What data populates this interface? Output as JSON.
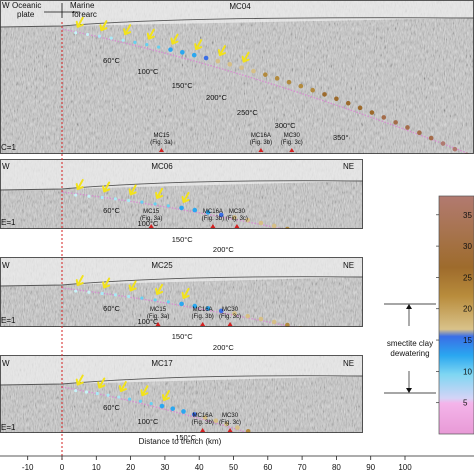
{
  "top_labels": {
    "oceanic": "Oceanic",
    "plate": "plate",
    "marine": "Marine",
    "forearc": "forearc"
  },
  "panels": [
    {
      "profile": "MC04",
      "sw": "W",
      "ne": "",
      "ve": "C=1",
      "temps": [
        "60°C",
        "100°C",
        "150°C",
        "200°C",
        "250°C",
        "300°C",
        "350°"
      ],
      "markers": [
        {
          "name": "MC15",
          "fig": "(Fig. 3a)",
          "km": 29
        },
        {
          "name": "MC16A",
          "fig": "(Fig. 3b)",
          "km": 58
        },
        {
          "name": "MC30",
          "fig": "(Fig. 3c)",
          "km": 67
        }
      ]
    },
    {
      "profile": "MC06",
      "sw": "W",
      "ne": "NE",
      "ve": "E=1",
      "temps": [
        "60°C",
        "100°C",
        "150°C",
        "200°C"
      ],
      "markers": [
        {
          "name": "MC15",
          "fig": "(Fig. 3a)",
          "km": 26
        },
        {
          "name": "MC16A",
          "fig": "(Fig. 3b)",
          "km": 44
        },
        {
          "name": "MC30",
          "fig": "(Fig. 3c)",
          "km": 51
        }
      ]
    },
    {
      "profile": "MC25",
      "sw": "W",
      "ne": "NE",
      "ve": "E=1",
      "temps": [
        "60°C",
        "100°C",
        "150°C",
        "200°C"
      ],
      "markers": [
        {
          "name": "MC15",
          "fig": "(Fig. 3a)",
          "km": 28
        },
        {
          "name": "MC16A",
          "fig": "(Fig. 3b)",
          "km": 41
        },
        {
          "name": "MC30",
          "fig": "(Fig. 3c)",
          "km": 49
        }
      ]
    },
    {
      "profile": "MC17",
      "sw": "W",
      "ne": "NE",
      "ve": "E=1",
      "temps": [
        "60°C",
        "100°C",
        "150°C"
      ],
      "markers": [
        {
          "name": "MC16A",
          "fig": "(Fig. 3b)",
          "km": 41
        },
        {
          "name": "MC30",
          "fig": "(Fig. 3c)",
          "km": 49
        }
      ]
    }
  ],
  "x_axis": {
    "label": "Distance to trench (km)",
    "ticks": [
      "-10",
      "0",
      "10",
      "20",
      "30",
      "40",
      "50",
      "60",
      "70",
      "80",
      "90",
      "100"
    ],
    "range": [
      -18,
      104
    ]
  },
  "colorbar": {
    "tick_labels": [
      "35",
      "30",
      "25",
      "20",
      "15",
      "10",
      "5"
    ],
    "annotation_line1": "smectite clay",
    "annotation_line2": "dewatering"
  },
  "colors": {
    "trench_line": "#d42020",
    "marker": "#d42020",
    "arrow": "#f2e21c",
    "seismic_bg": "#c9c9c9"
  }
}
